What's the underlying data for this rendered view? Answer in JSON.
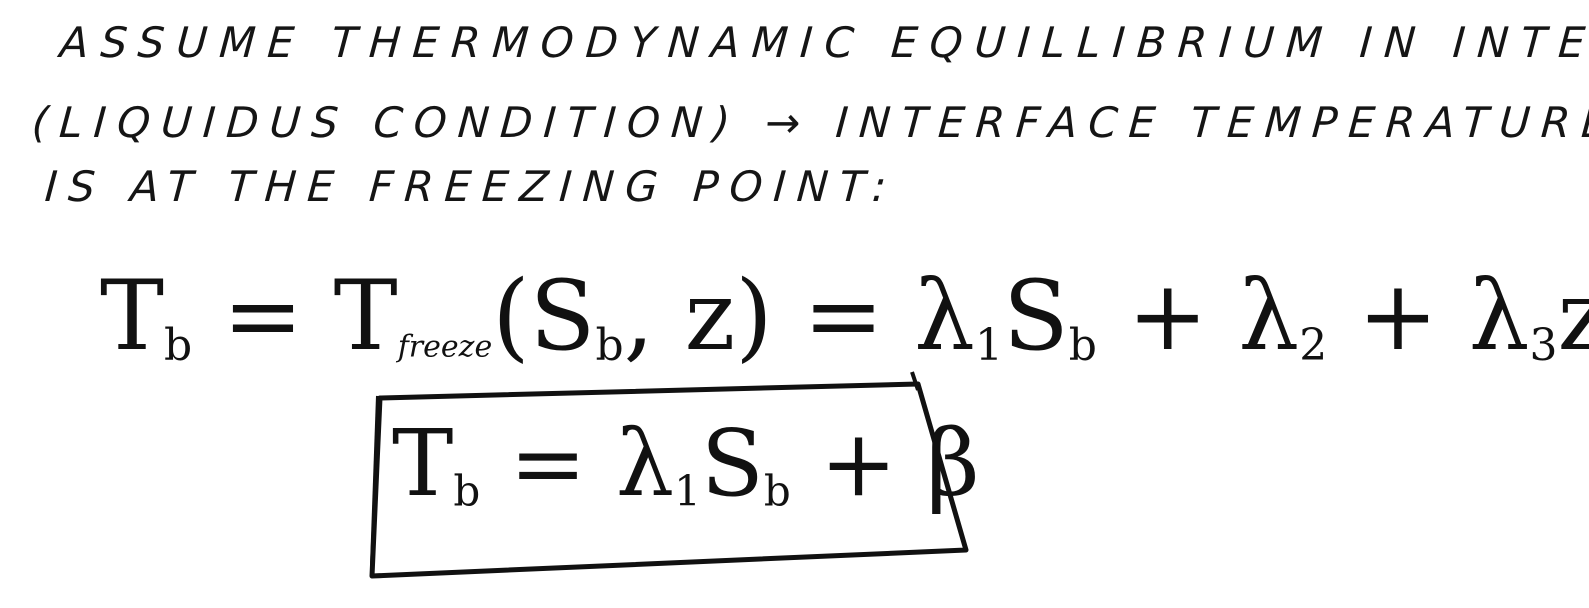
{
  "note": {
    "lines": [
      "ASSUME THERMODYNAMIC EQUILLIBRIUM IN INTERFACE",
      "(LIQUIDUS CONDITION) → INTERFACE TEMPERATURE",
      "IS AT THE FREEZING POINT:"
    ]
  },
  "equation_main": {
    "lhs": "T",
    "lhs_sub": "b",
    "eq1": " = ",
    "func": "T",
    "func_sub": "freeze",
    "args": "(S",
    "args_sub": "b",
    "args_tail": ", z)",
    "eq2": " = ",
    "term1": "λ",
    "term1_sub": "1",
    "term1_var": "S",
    "term1_var_sub": "b",
    "plus1": " + ",
    "term2": "λ",
    "term2_sub": "2",
    "plus2": " + ",
    "term3": "λ",
    "term3_sub": "3",
    "term3_var": "z"
  },
  "equation_boxed": {
    "lhs": "T",
    "lhs_sub": "b",
    "eq": " = ",
    "coef": "λ",
    "coef_sub": "1",
    "var": "S",
    "var_sub": "b",
    "plus": " + ",
    "const": "β"
  }
}
